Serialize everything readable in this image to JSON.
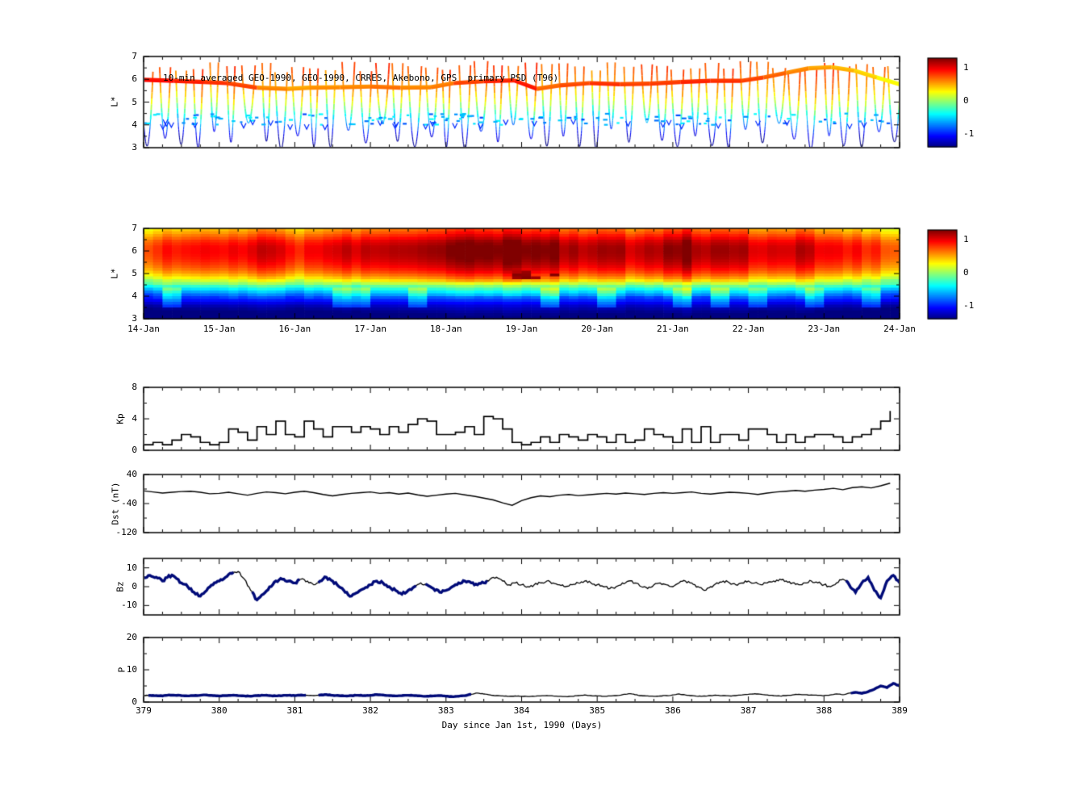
{
  "figure": {
    "background": "#ffffff",
    "axis_color": "#000000",
    "bold_line_color": "#000a78"
  },
  "chart_data": [
    {
      "id": "psd-satellite",
      "type": "scatter",
      "title": "10-min averaged GEO-1990, GEO-1990, CRRES, Akebono, GPS  primary PSD (T96)",
      "ylabel": "L*",
      "ylim": [
        3,
        7
      ],
      "yticks": [
        7,
        6,
        5,
        4,
        3
      ],
      "xlim": [
        379,
        389
      ],
      "colorbar": {
        "ticks": [
          1,
          0,
          -1
        ],
        "range": [
          -1.4,
          1.3
        ],
        "colormap": "jet"
      },
      "geo_track": {
        "x": [
          379,
          379.4,
          379.8,
          380.1,
          380.5,
          380.9,
          381.2,
          381.6,
          382,
          382.4,
          382.8,
          383.1,
          383.5,
          383.9,
          384.2,
          384.5,
          384.9,
          385.3,
          385.7,
          386.1,
          386.5,
          386.9,
          387.2,
          387.5,
          387.8,
          388.1,
          388.4,
          388.7,
          389
        ],
        "l": [
          5.95,
          5.9,
          5.85,
          5.8,
          5.6,
          5.55,
          5.6,
          5.62,
          5.65,
          5.6,
          5.62,
          5.8,
          5.88,
          5.92,
          5.55,
          5.7,
          5.8,
          5.75,
          5.78,
          5.85,
          5.9,
          5.9,
          6.05,
          6.25,
          6.45,
          6.5,
          6.35,
          6.05,
          5.75
        ],
        "psd": [
          0.95,
          0.9,
          0.85,
          0.8,
          0.62,
          0.55,
          0.6,
          0.62,
          0.68,
          0.62,
          0.65,
          0.8,
          0.88,
          0.92,
          0.7,
          0.78,
          0.85,
          0.8,
          0.82,
          0.88,
          0.85,
          0.8,
          0.72,
          0.62,
          0.55,
          0.5,
          0.42,
          0.3,
          0.15
        ]
      },
      "orbit_passes": {
        "count": 46,
        "l_top": 6.6,
        "l_min_pattern": [
          3.0,
          3.45,
          3.1,
          3.0,
          3.75,
          3.2,
          4.05,
          3.35
        ],
        "psd_vs_l": {
          "l": [
            6.5,
            5.5,
            4.9,
            4.4,
            4.0,
            3.5,
            3.0
          ],
          "psd": [
            0.75,
            0.5,
            0.1,
            -0.4,
            -0.75,
            -1.2,
            -1.4
          ]
        }
      },
      "low_l_band": {
        "l_center": 4.25,
        "l_spread": 0.5,
        "count": 130,
        "psd_range": [
          -0.9,
          -0.35
        ]
      }
    },
    {
      "id": "psd-heatmap",
      "type": "heatmap",
      "ylabel": "L*",
      "ylim": [
        3,
        7
      ],
      "yticks": [
        7,
        6,
        5,
        4,
        3
      ],
      "x_tick_labels": [
        "14-Jan",
        "15-Jan",
        "16-Jan",
        "17-Jan",
        "18-Jan",
        "19-Jan",
        "20-Jan",
        "21-Jan",
        "22-Jan",
        "23-Jan",
        "24-Jan"
      ],
      "colorbar": {
        "ticks": [
          1,
          0,
          -1
        ],
        "range": [
          -1.4,
          1.3
        ],
        "colormap": "jet"
      },
      "l_profile_l": [
        7.0,
        6.73,
        6.47,
        6.2,
        5.93,
        5.67,
        5.4,
        5.13,
        4.87,
        4.6,
        4.33,
        4.07,
        3.8,
        3.53,
        3.27,
        3.0
      ],
      "l_profile_psd": [
        0.5,
        0.7,
        0.9,
        1.0,
        1.0,
        0.95,
        0.85,
        0.7,
        0.45,
        0.1,
        -0.35,
        -0.7,
        -1.0,
        -1.25,
        -1.4,
        -1.5
      ],
      "time_modulation": [
        -0.15,
        -0.1,
        0,
        0.05,
        -0.05,
        0,
        0.1,
        0.05,
        -0.1,
        0,
        0.1,
        0.15,
        0.1,
        0.15,
        0.2,
        0.25,
        0.3,
        0.35,
        0.3,
        0.35,
        0.3,
        0.25,
        0.2,
        0.15,
        0.2,
        0.15,
        0.2,
        0.25,
        0.3,
        0.25,
        0.2,
        0.15,
        0.1,
        0.05,
        0.1,
        0.05,
        0,
        -0.05,
        -0.15,
        -0.25
      ]
    },
    {
      "id": "kp",
      "type": "line",
      "ylabel": "Kp",
      "ylim": [
        0,
        8
      ],
      "yticks": [
        8,
        4,
        0
      ],
      "x_start": 379,
      "x_step": 0.125,
      "step_plot": true,
      "values": [
        0.7,
        1,
        0.7,
        1.3,
        2,
        1.7,
        1,
        0.7,
        1,
        2.7,
        2.3,
        1.3,
        3,
        2,
        3.7,
        2,
        1.7,
        3.7,
        2.7,
        1.7,
        3,
        3,
        2.3,
        3,
        2.7,
        2,
        3,
        2.3,
        3.3,
        4,
        3.7,
        2,
        2,
        2.3,
        3,
        2,
        4.3,
        4,
        2.7,
        1,
        0.7,
        1,
        1.7,
        1,
        2,
        1.7,
        1.3,
        2,
        1.7,
        1,
        2,
        1,
        1.3,
        2.7,
        2,
        1.7,
        1,
        2.7,
        1,
        3,
        1,
        2,
        2,
        1.3,
        2.7,
        2.7,
        2,
        1,
        2,
        1,
        1.7,
        2,
        2,
        1.7,
        1,
        1.7,
        2,
        2.7,
        3.7,
        5
      ]
    },
    {
      "id": "dst",
      "type": "line",
      "ylabel": "Dst (nT)",
      "ylim": [
        -120,
        40
      ],
      "yticks": [
        40,
        -40,
        -120
      ],
      "x_start": 379,
      "x_step": 0.125,
      "values": [
        -5,
        -8,
        -11,
        -9,
        -7,
        -6,
        -9,
        -13,
        -12,
        -9,
        -13,
        -17,
        -12,
        -8,
        -10,
        -13,
        -9,
        -6,
        -10,
        -15,
        -19,
        -15,
        -12,
        -10,
        -8,
        -12,
        -10,
        -14,
        -11,
        -16,
        -20,
        -17,
        -14,
        -12,
        -16,
        -20,
        -25,
        -30,
        -38,
        -45,
        -32,
        -24,
        -19,
        -21,
        -17,
        -15,
        -18,
        -16,
        -14,
        -12,
        -14,
        -11,
        -13,
        -15,
        -12,
        -10,
        -12,
        -10,
        -8,
        -12,
        -14,
        -11,
        -9,
        -10,
        -12,
        -15,
        -11,
        -8,
        -6,
        -4,
        -6,
        -3,
        -1,
        2,
        -2,
        4,
        6,
        3,
        9,
        16
      ]
    },
    {
      "id": "bz",
      "type": "line",
      "ylabel": "Bz",
      "ylim": [
        -15,
        15
      ],
      "yticks": [
        10,
        0,
        -10
      ],
      "x_start": 379,
      "x_step": 0.0833333,
      "bold_ranges": [
        [
          379,
          380.2
        ],
        [
          380.42,
          381.08
        ],
        [
          381.3,
          382.62
        ],
        [
          382.72,
          383.55
        ],
        [
          388.28,
          389
        ]
      ],
      "values": [
        5,
        6,
        5,
        3,
        6,
        5,
        2,
        0,
        -3,
        -5,
        -2,
        1,
        3,
        5,
        7,
        8,
        4,
        -2,
        -7,
        -4,
        0,
        3,
        4,
        3,
        2,
        4,
        3,
        1,
        3,
        5,
        3,
        0,
        -3,
        -5,
        -3,
        -1,
        1,
        3,
        2,
        0,
        -2,
        -4,
        -2,
        0,
        2,
        1,
        -1,
        -3,
        -2,
        0,
        2,
        3,
        2,
        1,
        2,
        4,
        5,
        3,
        1,
        2,
        1,
        0,
        1,
        2,
        3,
        2,
        1,
        0,
        1,
        2,
        3,
        2,
        1,
        0,
        -1,
        0,
        2,
        3,
        2,
        0,
        -1,
        1,
        2,
        1,
        0,
        2,
        3,
        2,
        0,
        -2,
        0,
        2,
        3,
        2,
        1,
        2,
        3,
        2,
        1,
        2,
        3,
        4,
        3,
        2,
        1,
        2,
        3,
        2,
        1,
        0,
        2,
        4,
        1,
        -3,
        2,
        5,
        -2,
        -6,
        3,
        6,
        2
      ]
    },
    {
      "id": "p",
      "type": "line",
      "ylabel": "P",
      "ylim": [
        0,
        20
      ],
      "yticks": [
        20,
        10,
        0
      ],
      "x_start": 379,
      "x_step": 0.0833333,
      "x_ticks": [
        379,
        380,
        381,
        382,
        383,
        384,
        385,
        386,
        387,
        388,
        389
      ],
      "xlabel": "Day since Jan 1st, 1990 (Days)",
      "bold_ranges": [
        [
          379.05,
          381.15
        ],
        [
          381.3,
          383.35
        ],
        [
          388.35,
          389
        ]
      ],
      "values": [
        2,
        2.1,
        2,
        1.9,
        2.2,
        2.1,
        2,
        1.9,
        2,
        2.1,
        2.2,
        2,
        1.9,
        2,
        2.1,
        2,
        1.9,
        1.8,
        2,
        2.1,
        2,
        1.9,
        2,
        2.1,
        2,
        2.2,
        2.1,
        2,
        2.2,
        2.3,
        2.1,
        2,
        1.9,
        2,
        2.1,
        2,
        2.1,
        2.3,
        2.2,
        2,
        1.9,
        2,
        2.1,
        2,
        1.9,
        1.8,
        1.9,
        2,
        1.8,
        1.7,
        1.8,
        2,
        2.4,
        2.8,
        2.5,
        2.2,
        2,
        1.9,
        1.8,
        1.9,
        1.8,
        1.7,
        1.8,
        1.9,
        2,
        1.9,
        1.8,
        1.7,
        1.8,
        2,
        2.2,
        2,
        1.9,
        1.8,
        1.9,
        2,
        2.3,
        2.6,
        2.3,
        2,
        1.9,
        1.8,
        1.9,
        2,
        2.2,
        2.5,
        2.2,
        2,
        1.8,
        1.9,
        2,
        2.1,
        2,
        1.9,
        2,
        2.2,
        2.4,
        2.6,
        2.4,
        2.2,
        2,
        1.9,
        2,
        2.2,
        2.4,
        2.3,
        2.2,
        2.1,
        2,
        2.2,
        2.5,
        2.3,
        2.8,
        3,
        2.7,
        3.2,
        4,
        5,
        4.5,
        5.8,
        5
      ]
    }
  ]
}
